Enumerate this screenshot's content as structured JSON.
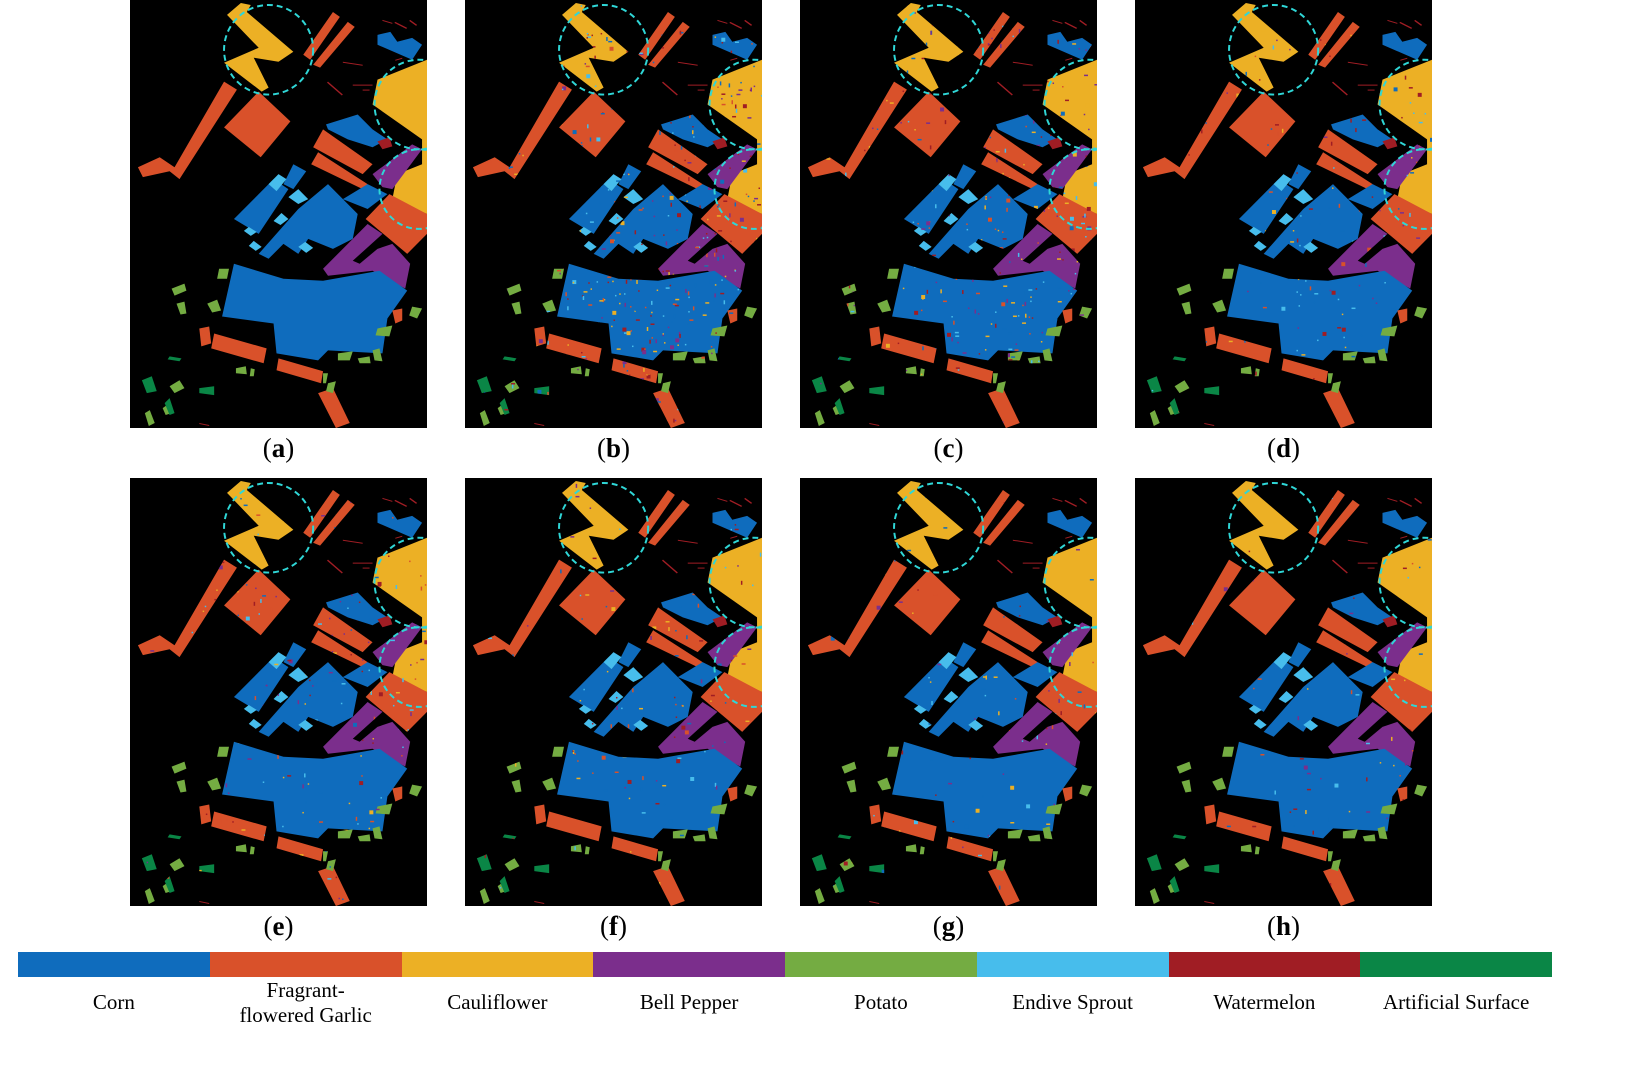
{
  "panels": [
    {
      "id": "a",
      "label_open": "(",
      "label_letter": "a",
      "label_close": ")"
    },
    {
      "id": "b",
      "label_open": "(",
      "label_letter": "b",
      "label_close": ")"
    },
    {
      "id": "c",
      "label_open": "(",
      "label_letter": "c",
      "label_close": ")"
    },
    {
      "id": "d",
      "label_open": "(",
      "label_letter": "d",
      "label_close": ")"
    },
    {
      "id": "e",
      "label_open": "(",
      "label_letter": "e",
      "label_close": ")"
    },
    {
      "id": "f",
      "label_open": "(",
      "label_letter": "f",
      "label_close": ")"
    },
    {
      "id": "g",
      "label_open": "(",
      "label_letter": "g",
      "label_close": ")"
    },
    {
      "id": "h",
      "label_open": "(",
      "label_letter": "h",
      "label_close": ")"
    }
  ],
  "legend": [
    {
      "name": "Corn",
      "color": "#0f6cbd"
    },
    {
      "name": "Fragrant-flowered Garlic",
      "line1": "Fragrant-",
      "line2": "flowered Garlic",
      "color": "#d9512a"
    },
    {
      "name": "Cauliflower",
      "color": "#ecb025"
    },
    {
      "name": "Bell Pepper",
      "color": "#7b2e8c"
    },
    {
      "name": "Potato",
      "color": "#74ac42"
    },
    {
      "name": "Endive Sprout",
      "color": "#47bdec"
    },
    {
      "name": "Watermelon",
      "color": "#a01d24"
    },
    {
      "name": "Artificial Surface",
      "color": "#0a8646"
    }
  ],
  "highlight_color": "#2fd6d6"
}
